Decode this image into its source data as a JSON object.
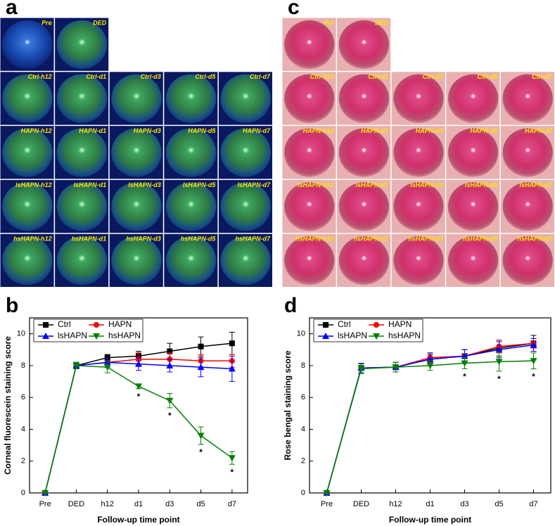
{
  "figure": {
    "panels": [
      {
        "letter": "a",
        "images": [
          [
            "Pre",
            "DED"
          ],
          [
            "Ctrl-h12",
            "Ctrl-d1",
            "Ctrl-d3",
            "Ctrl-d5",
            "Ctrl-d7"
          ],
          [
            "HAPN-h12",
            "HAPN-d1",
            "HAPN-d3",
            "HAPN-d5",
            "HAPN-d7"
          ],
          [
            "lsHAPN-h12",
            "lsHAPN-d1",
            "lsHAPN-d3",
            "lsHAPN-d5",
            "lsHAPN-d7"
          ],
          [
            "hsHAPN-h12",
            "hsHAPN-d1",
            "hsHAPN-d3",
            "hsHAPN-d5",
            "hsHAPN-d7"
          ]
        ]
      },
      {
        "letter": "c",
        "images": [
          [
            "Pre",
            "DED"
          ],
          [
            "Ctrl-h12",
            "Ctrl-d1",
            "Ctrl-d3",
            "Ctrl-d5",
            "Ctrl-d7"
          ],
          [
            "HAPN-h12",
            "HAPN-d1",
            "HAPN-d3",
            "HAPN-d5",
            "HAPN-d7"
          ],
          [
            "lsHAPN-h12",
            "lsHAPN-d1",
            "lsHAPN-d3",
            "lsHAPN-d5",
            "lsHAPN-d7"
          ],
          [
            "hsHAPN-h12",
            "hsHAPN-d1",
            "hsHAPN-d3",
            "hsHAPN-d5",
            "hsHAPN-d7"
          ]
        ]
      }
    ]
  },
  "chart_data": [
    {
      "type": "line",
      "label": "b",
      "x_label": "Follow-up time point",
      "y_label": "Corneal fluorescein staining score",
      "categories": [
        "Pre",
        "DED",
        "h12",
        "d1",
        "d3",
        "d5",
        "d7"
      ],
      "ylim": [
        0,
        11
      ],
      "yticks": [
        0,
        2,
        4,
        6,
        8,
        10
      ],
      "series": [
        {
          "name": "Ctrl",
          "color": "#000000",
          "marker": "square",
          "values": [
            0,
            8,
            8.5,
            8.6,
            8.9,
            9.2,
            9.4
          ],
          "errors": [
            0,
            0.2,
            0.2,
            0.3,
            0.5,
            0.6,
            0.7
          ]
        },
        {
          "name": "HAPN",
          "color": "#ff0000",
          "marker": "circle",
          "values": [
            0,
            8,
            8.2,
            8.4,
            8.4,
            8.3,
            8.3
          ],
          "errors": [
            0,
            0.2,
            0.3,
            0.4,
            0.4,
            0.4,
            0.4
          ]
        },
        {
          "name": "lsHAPN",
          "color": "#0000ff",
          "marker": "triangle-up",
          "values": [
            0,
            8,
            8.2,
            8.1,
            8.0,
            7.9,
            7.8
          ],
          "errors": [
            0,
            0.2,
            0.3,
            0.4,
            0.4,
            0.6,
            0.8
          ]
        },
        {
          "name": "hsHAPN",
          "color": "#008000",
          "marker": "triangle-down",
          "values": [
            0,
            8,
            7.9,
            6.7,
            5.8,
            3.6,
            2.2
          ],
          "errors": [
            0,
            0.2,
            0.35,
            0.15,
            0.45,
            0.55,
            0.4
          ],
          "significance": [
            null,
            null,
            null,
            "*",
            "*",
            "*",
            "*"
          ]
        }
      ]
    },
    {
      "type": "line",
      "label": "d",
      "x_label": "Follow-up time point",
      "y_label": "Rose bengal staining score",
      "categories": [
        "Pre",
        "DED",
        "h12",
        "d1",
        "d3",
        "d5",
        "d7"
      ],
      "ylim": [
        0,
        11
      ],
      "yticks": [
        0,
        2,
        4,
        6,
        8,
        10
      ],
      "series": [
        {
          "name": "Ctrl",
          "color": "#000000",
          "marker": "square",
          "values": [
            0,
            7.85,
            7.9,
            8.4,
            8.6,
            9.1,
            9.4
          ],
          "errors": [
            0,
            0.3,
            0.3,
            0.3,
            0.4,
            0.5,
            0.5
          ]
        },
        {
          "name": "HAPN",
          "color": "#ff0000",
          "marker": "circle",
          "values": [
            0,
            7.85,
            7.9,
            8.5,
            8.6,
            9.2,
            9.4
          ],
          "errors": [
            0,
            0.3,
            0.3,
            0.3,
            0.4,
            0.4,
            0.3
          ]
        },
        {
          "name": "lsHAPN",
          "color": "#0000ff",
          "marker": "triangle-up",
          "values": [
            0,
            7.85,
            7.9,
            8.4,
            8.6,
            9.0,
            9.3
          ],
          "errors": [
            0,
            0.3,
            0.3,
            0.4,
            0.4,
            0.5,
            0.4
          ]
        },
        {
          "name": "hsHAPN",
          "color": "#008000",
          "marker": "triangle-down",
          "values": [
            0,
            7.8,
            7.9,
            8.0,
            8.15,
            8.25,
            8.3
          ],
          "errors": [
            0,
            0.3,
            0.3,
            0.3,
            0.35,
            0.6,
            0.5
          ],
          "significance": [
            null,
            null,
            null,
            null,
            "*",
            "*",
            "*"
          ]
        }
      ]
    }
  ]
}
